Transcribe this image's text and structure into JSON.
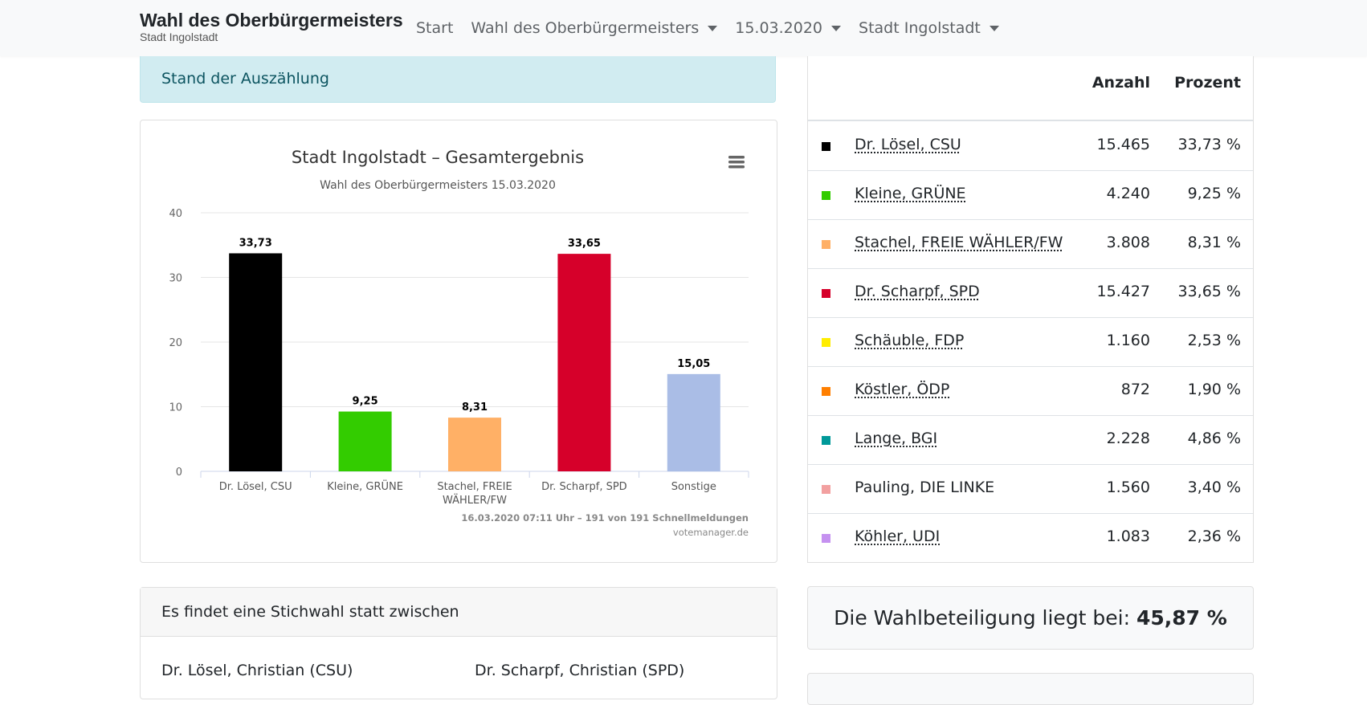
{
  "nav": {
    "brand_title": "Wahl des Oberbürgermeisters",
    "brand_subtitle": "Stadt Ingolstadt",
    "items": [
      {
        "label": "Start",
        "dropdown": false
      },
      {
        "label": "Wahl des Oberbürgermeisters",
        "dropdown": true
      },
      {
        "label": "15.03.2020",
        "dropdown": true
      },
      {
        "label": "Stadt Ingolstadt",
        "dropdown": true
      }
    ]
  },
  "status_alert": "Stand der Auszählung",
  "chart_data": {
    "type": "bar",
    "title": "Stadt Ingolstadt – Gesamtergebnis",
    "subtitle": "Wahl des Oberbürgermeisters 15.03.2020",
    "categories": [
      "Dr. Lösel, CSU",
      "Kleine, GRÜNE",
      "Stachel, FREIE WÄHLER/FW",
      "Dr. Scharpf, SPD",
      "Sonstige"
    ],
    "category_lines": [
      [
        "Dr. Lösel, CSU"
      ],
      [
        "Kleine, GRÜNE"
      ],
      [
        "Stachel, FREIE",
        "WÄHLER/FW"
      ],
      [
        "Dr. Scharpf, SPD"
      ],
      [
        "Sonstige"
      ]
    ],
    "values": [
      33.73,
      9.25,
      8.31,
      33.65,
      15.05
    ],
    "value_labels": [
      "33,73",
      "9,25",
      "8,31",
      "33,65",
      "15,05"
    ],
    "colors": [
      "#000000",
      "#33cc00",
      "#ffb066",
      "#d6002a",
      "#aabde6"
    ],
    "ylim": [
      0,
      40
    ],
    "yticks": [
      0,
      10,
      20,
      30,
      40
    ],
    "grid": true,
    "legend": "none",
    "footnote": "16.03.2020 07:11 Uhr – 191 von 191 Schnellmeldungen",
    "credit": "votemanager.de",
    "menu_icon": "hamburger-menu-icon"
  },
  "table": {
    "headers": {
      "count": "Anzahl",
      "percent": "Prozent"
    },
    "rows": [
      {
        "name": "Dr. Lösel, CSU",
        "count": "15.465",
        "percent": "33,73 %",
        "color": "#000000",
        "link": true
      },
      {
        "name": "Kleine, GRÜNE",
        "count": "4.240",
        "percent": "9,25 %",
        "color": "#33cc00",
        "link": true
      },
      {
        "name": "Stachel, FREIE WÄHLER/FW",
        "count": "3.808",
        "percent": "8,31 %",
        "color": "#ffb066",
        "link": true
      },
      {
        "name": "Dr. Scharpf, SPD",
        "count": "15.427",
        "percent": "33,65 %",
        "color": "#d6002a",
        "link": true
      },
      {
        "name": "Schäuble, FDP",
        "count": "1.160",
        "percent": "2,53 %",
        "color": "#ffed00",
        "link": true
      },
      {
        "name": "Köstler, ÖDP",
        "count": "872",
        "percent": "1,90 %",
        "color": "#ff7f00",
        "link": true
      },
      {
        "name": "Lange, BGI",
        "count": "2.228",
        "percent": "4,86 %",
        "color": "#009999",
        "link": true
      },
      {
        "name": "Pauling, DIE LINKE",
        "count": "1.560",
        "percent": "3,40 %",
        "color": "#f2a0a0",
        "link": false
      },
      {
        "name": "Köhler, UDI",
        "count": "1.083",
        "percent": "2,36 %",
        "color": "#c591f0",
        "link": true
      }
    ]
  },
  "runoff": {
    "heading": "Es findet eine Stichwahl statt zwischen",
    "candidate_a": "Dr. Lösel, Christian (CSU)",
    "candidate_b": "Dr. Scharpf, Christian (SPD)"
  },
  "turnout": {
    "text": "Die Wahlbeteiligung liegt bei: ",
    "value": "45,87 %"
  }
}
